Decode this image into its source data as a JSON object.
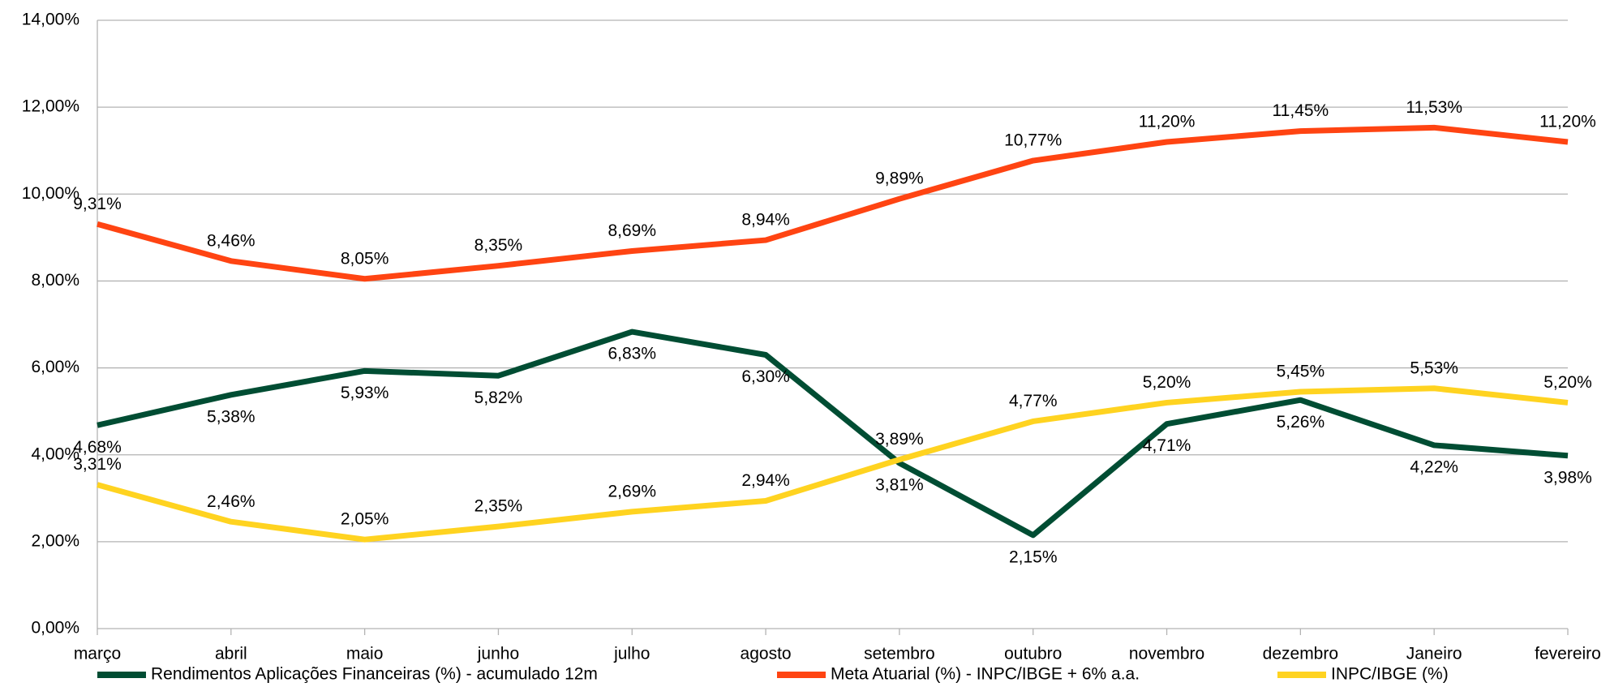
{
  "chart_data": {
    "type": "line",
    "categories": [
      "março",
      "abril",
      "maio",
      "junho",
      "julho",
      "agosto",
      "setembro",
      "outubro",
      "novembro",
      "dezembro",
      "Janeiro",
      "fevereiro"
    ],
    "series": [
      {
        "name": "Rendimentos Aplicações Financeiras (%) - acumulado 12m",
        "color": "#004d33",
        "values": [
          4.68,
          5.38,
          5.93,
          5.82,
          6.83,
          6.3,
          3.81,
          2.15,
          4.71,
          5.26,
          4.22,
          3.98
        ],
        "value_labels": [
          "4,68%",
          "5,38%",
          "5,93%",
          "5,82%",
          "6,83%",
          "6,30%",
          "3,81%",
          "2,15%",
          "4,71%",
          "5,26%",
          "4,22%",
          "3,98%"
        ]
      },
      {
        "name": "Meta Atuarial (%) - INPC/IBGE + 6% a.a.",
        "color": "#ff4412",
        "values": [
          9.31,
          8.46,
          8.05,
          8.35,
          8.69,
          8.94,
          9.89,
          10.77,
          11.2,
          11.45,
          11.53,
          11.2
        ],
        "value_labels": [
          "9,31%",
          "8,46%",
          "8,05%",
          "8,35%",
          "8,69%",
          "8,94%",
          "9,89%",
          "10,77%",
          "11,20%",
          "11,45%",
          "11,53%",
          "11,20%"
        ]
      },
      {
        "name": "INPC/IBGE (%)",
        "color": "#ffd320",
        "values": [
          3.31,
          2.46,
          2.05,
          2.35,
          2.69,
          2.94,
          3.89,
          4.77,
          5.2,
          5.45,
          5.53,
          5.2
        ],
        "value_labels": [
          "3,31%",
          "2,46%",
          "2,05%",
          "2,35%",
          "2,69%",
          "2,94%",
          "3,89%",
          "4,77%",
          "5,20%",
          "5,45%",
          "5,53%",
          "5,20%"
        ]
      }
    ],
    "ylim": [
      0,
      14
    ],
    "yticks": [
      {
        "value": 0,
        "label": "0,00%"
      },
      {
        "value": 2,
        "label": "2,00%"
      },
      {
        "value": 4,
        "label": "4,00%"
      },
      {
        "value": 6,
        "label": "6,00%"
      },
      {
        "value": 8,
        "label": "8,00%"
      },
      {
        "value": 10,
        "label": "10,00%"
      },
      {
        "value": 12,
        "label": "12,00%"
      },
      {
        "value": 14,
        "label": "14,00%"
      }
    ],
    "grid": true,
    "legend": "bottom"
  }
}
